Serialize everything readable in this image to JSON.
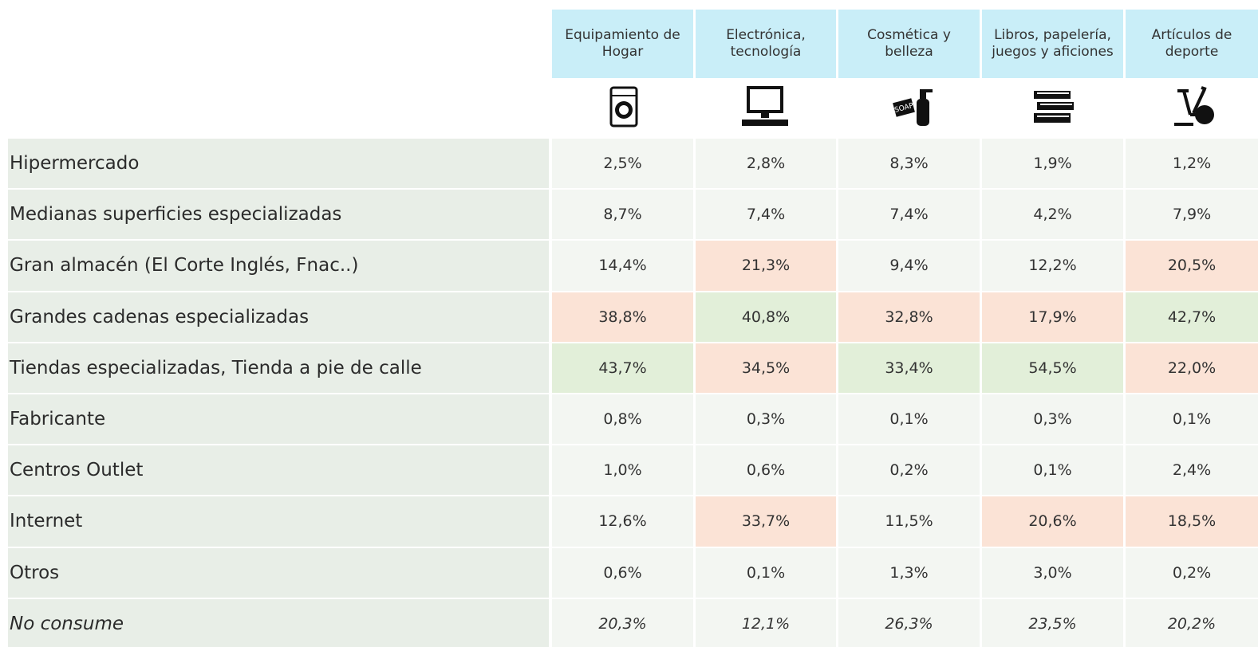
{
  "table": {
    "columns": [
      "Equipamiento de Hogar",
      "Electrónica, tecnología",
      "Cosmética y belleza",
      "Libros, papelería, juegos y aficiones",
      "Artículos de deporte"
    ],
    "header_color": "#c9eef8",
    "label_color": "#e8eee7",
    "rows": [
      {
        "label": "Hipermercado",
        "cells": [
          "2,5%",
          "2,8%",
          "8,3%",
          "1,9%",
          "1,2%"
        ],
        "fills": [
          "#f3f6f2",
          "#f3f6f2",
          "#f3f6f2",
          "#f3f6f2",
          "#f3f6f2"
        ]
      },
      {
        "label": "Medianas superficies especializadas",
        "cells": [
          "8,7%",
          "7,4%",
          "7,4%",
          "4,2%",
          "7,9%"
        ],
        "fills": [
          "#f3f6f2",
          "#f3f6f2",
          "#f3f6f2",
          "#f3f6f2",
          "#f3f6f2"
        ]
      },
      {
        "label": "Gran almacén (El Corte Inglés, Fnac..)",
        "cells": [
          "14,4%",
          "21,3%",
          "9,4%",
          "12,2%",
          "20,5%"
        ],
        "fills": [
          "#f3f6f2",
          "#fbe3d6",
          "#f3f6f2",
          "#f3f6f2",
          "#fbe3d6"
        ]
      },
      {
        "label": "Grandes cadenas especializadas",
        "cells": [
          "38,8%",
          "40,8%",
          "32,8%",
          "17,9%",
          "42,7%"
        ],
        "fills": [
          "#fbe3d6",
          "#e2efd9",
          "#fbe3d6",
          "#fbe3d6",
          "#e2efd9"
        ]
      },
      {
        "label": "Tiendas especializadas, Tienda a pie de calle",
        "cells": [
          "43,7%",
          "34,5%",
          "33,4%",
          "54,5%",
          "22,0%"
        ],
        "fills": [
          "#e2efd9",
          "#fbe3d6",
          "#e2efd9",
          "#e2efd9",
          "#fbe3d6"
        ]
      },
      {
        "label": "Fabricante",
        "cells": [
          "0,8%",
          "0,3%",
          "0,1%",
          "0,3%",
          "0,1%"
        ],
        "fills": [
          "#f3f6f2",
          "#f3f6f2",
          "#f3f6f2",
          "#f3f6f2",
          "#f3f6f2"
        ]
      },
      {
        "label": "Centros Outlet",
        "cells": [
          "1,0%",
          "0,6%",
          "0,2%",
          "0,1%",
          "2,4%"
        ],
        "fills": [
          "#f3f6f2",
          "#f3f6f2",
          "#f3f6f2",
          "#f3f6f2",
          "#f3f6f2"
        ]
      },
      {
        "label": "Internet",
        "cells": [
          "12,6%",
          "33,7%",
          "11,5%",
          "20,6%",
          "18,5%"
        ],
        "fills": [
          "#f3f6f2",
          "#fbe3d6",
          "#f3f6f2",
          "#fbe3d6",
          "#fbe3d6"
        ]
      },
      {
        "label": "Otros",
        "cells": [
          "0,6%",
          "0,1%",
          "1,3%",
          "3,0%",
          "0,2%"
        ],
        "fills": [
          "#f3f6f2",
          "#f3f6f2",
          "#f3f6f2",
          "#f3f6f2",
          "#f3f6f2"
        ]
      },
      {
        "label": "No consume",
        "cells": [
          "20,3%",
          "12,1%",
          "26,3%",
          "23,5%",
          "20,2%"
        ],
        "fills": [
          "#f3f6f2",
          "#f3f6f2",
          "#f3f6f2",
          "#f3f6f2",
          "#f3f6f2"
        ],
        "italic": true
      }
    ]
  }
}
